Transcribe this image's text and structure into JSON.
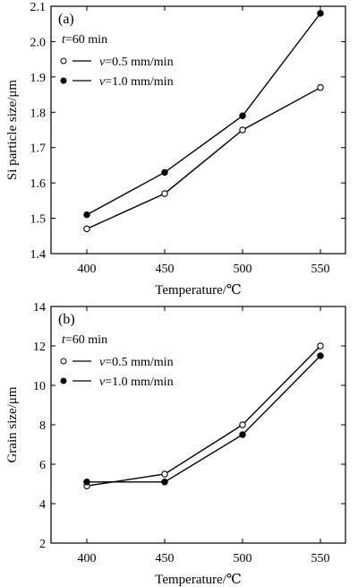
{
  "chart_data": [
    {
      "type": "line",
      "panel_label": "(a)",
      "xlabel": "Temperature/℃",
      "ylabel": "Si particle size/μm",
      "x": [
        400,
        450,
        500,
        550
      ],
      "xticks": [
        "400",
        "450",
        "500",
        "550"
      ],
      "ylim": [
        1.4,
        2.1
      ],
      "yticks": [
        "1.4",
        "1.5",
        "1.6",
        "1.7",
        "1.8",
        "1.9",
        "2.0",
        "2.1"
      ],
      "legend_title": "t=60 min",
      "series": [
        {
          "name": "v=0.5 mm/min",
          "marker": "open-circle",
          "values": [
            1.47,
            1.57,
            1.75,
            1.87
          ]
        },
        {
          "name": "v=1.0 mm/min",
          "marker": "filled-circle",
          "values": [
            1.51,
            1.63,
            1.79,
            2.08
          ]
        }
      ],
      "grid": false,
      "legend_position": "top-left"
    },
    {
      "type": "line",
      "panel_label": "(b)",
      "xlabel": "Temperature/℃",
      "ylabel": "Grain size/μm",
      "x": [
        400,
        450,
        500,
        550
      ],
      "xticks": [
        "400",
        "450",
        "500",
        "550"
      ],
      "ylim": [
        2,
        14
      ],
      "yticks": [
        "2",
        "4",
        "6",
        "8",
        "10",
        "12",
        "14"
      ],
      "legend_title": "t=60 min",
      "series": [
        {
          "name": "v=0.5 mm/min",
          "marker": "open-circle",
          "values": [
            4.9,
            5.5,
            8.0,
            12.0
          ]
        },
        {
          "name": "v=1.0 mm/min",
          "marker": "filled-circle",
          "values": [
            5.1,
            5.1,
            7.5,
            11.5
          ]
        }
      ],
      "grid": false,
      "legend_position": "top-left"
    }
  ]
}
